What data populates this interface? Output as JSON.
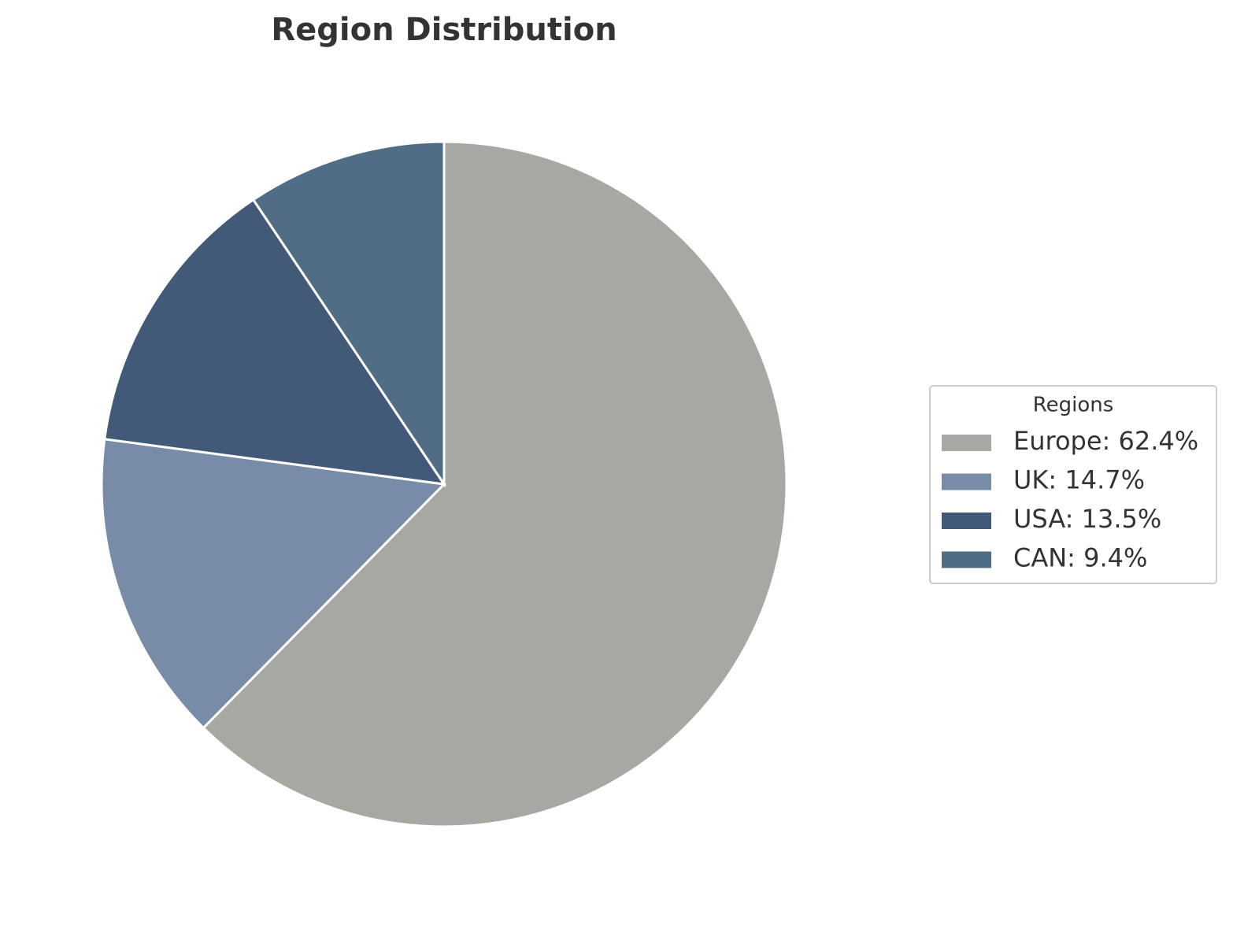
{
  "chart_data": {
    "type": "pie",
    "title": "Region Distribution",
    "values": [
      62.4,
      14.7,
      13.5,
      9.4
    ],
    "value_labels": [
      "Europe: 62.4%",
      "UK: 14.7%",
      "USA: 13.5%",
      "CAN: 9.4%"
    ],
    "colors": [
      "#a8a8a3",
      "#788ca8",
      "#425a78",
      "#506d85"
    ],
    "legend_title": "Regions",
    "legend": "right"
  }
}
